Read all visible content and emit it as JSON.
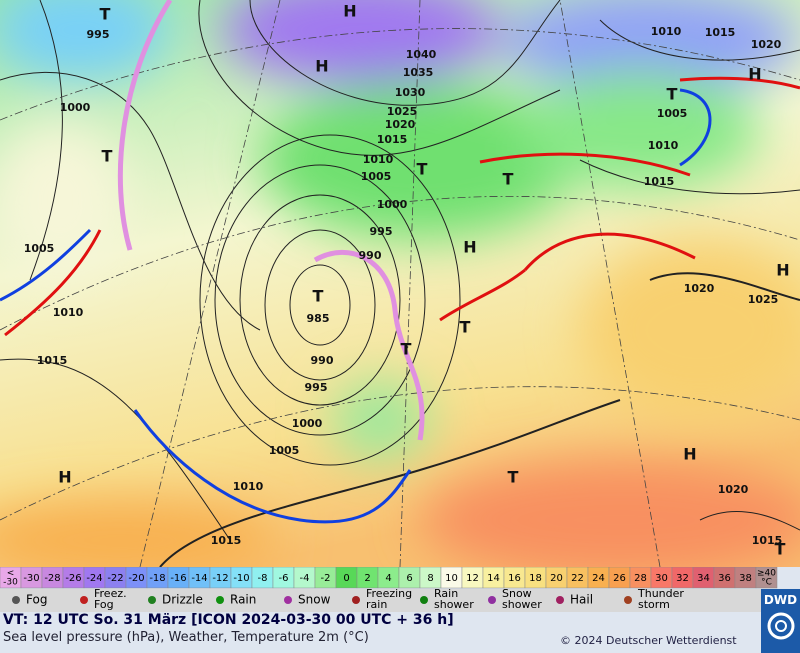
{
  "map": {
    "labels": [
      "T",
      "995",
      "H",
      "H",
      "1040",
      "1035",
      "1030",
      "1025",
      "1020",
      "1015",
      "1010",
      "1005",
      "T",
      "1000",
      "995",
      "990",
      "H",
      "T",
      "985",
      "990",
      "995",
      "1000",
      "1005",
      "1010",
      "1015",
      "T",
      "T",
      "T",
      "H",
      "1020",
      "1015",
      "T",
      "1000",
      "T",
      "1005",
      "1010",
      "1015",
      "H",
      "1010",
      "1015",
      "1020",
      "T",
      "H",
      "1005",
      "1010",
      "1015",
      "T",
      "1020",
      "1025",
      "H"
    ]
  },
  "color_scale": {
    "low_label": [
      "<",
      "-30"
    ],
    "labels": [
      -30,
      -28,
      -26,
      -24,
      -22,
      -20,
      -18,
      -16,
      -14,
      -12,
      -10,
      -8,
      -6,
      -4,
      -2,
      0,
      2,
      4,
      6,
      8,
      10,
      12,
      14,
      16,
      18,
      20,
      22,
      24,
      26,
      28,
      30,
      32,
      34,
      36,
      38
    ],
    "high_label": [
      "≥40",
      "°C"
    ],
    "low_color": "#e8a8e8",
    "colors": [
      "#d898e0",
      "#c888e0",
      "#b47ce8",
      "#a078f0",
      "#8c80f0",
      "#7c90f8",
      "#70a0f8",
      "#68b0f8",
      "#70c0f8",
      "#78d0f8",
      "#84e0f8",
      "#90f0f0",
      "#a0f8e0",
      "#b4f8cc",
      "#98ec98",
      "#58d858",
      "#70e470",
      "#8cec8c",
      "#acf0ac",
      "#ccf8c8",
      "#fafae8",
      "#f8f8c0",
      "#f8f0a0",
      "#f8e890",
      "#f8e080",
      "#f8d070",
      "#f8c060",
      "#f8b050",
      "#f8a050",
      "#f89060",
      "#f87868",
      "#f06868",
      "#e06070",
      "#d07070",
      "#c08080"
    ],
    "high_color": "#b09090"
  },
  "weather_legend": [
    [
      "Fog"
    ],
    [
      "Freez.",
      "Fog"
    ],
    [
      "Drizzle"
    ],
    [
      "Rain"
    ],
    [
      "Snow"
    ],
    [
      "Freezing",
      "rain"
    ],
    [
      "Rain",
      "shower"
    ],
    [
      "Snow",
      "shower"
    ],
    [
      "Hail"
    ],
    [
      "Thunder",
      "storm"
    ]
  ],
  "info": {
    "valid_time": "VT: 12 UTC So.  31 März [ICON 2024-03-30  00 UTC + 36 h]",
    "description": "Sea level pressure (hPa), Weather, Temperature 2m (°C)",
    "copyright": "© 2024 Deutscher Wetterdienst",
    "logo": "DWD"
  }
}
